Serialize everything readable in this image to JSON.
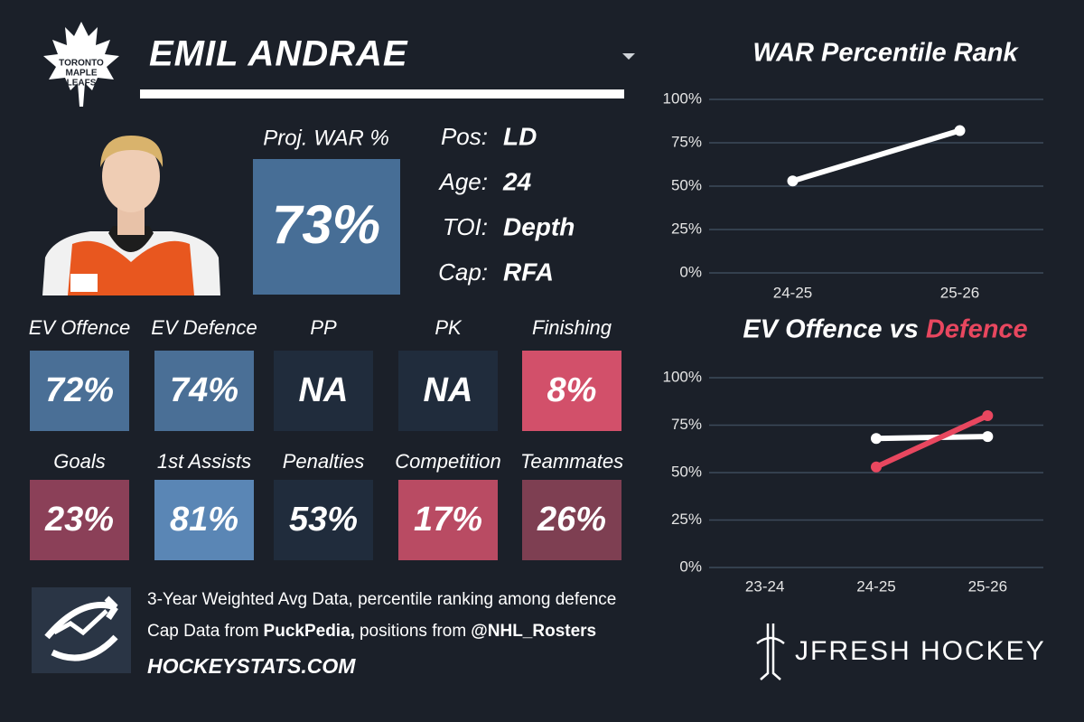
{
  "header": {
    "player_name": "EMIL ANDRAE",
    "logo_text": [
      "TORONTO",
      "MAPLE",
      "LEAFS"
    ]
  },
  "proj_war": {
    "label": "Proj. WAR %",
    "value": "73%",
    "color": "#476e96"
  },
  "bio": [
    {
      "label": "Pos:",
      "value": "LD"
    },
    {
      "label": "Age:",
      "value": "24"
    },
    {
      "label": "TOI:",
      "value": "Depth"
    },
    {
      "label": "Cap:",
      "value": "RFA"
    }
  ],
  "tiles": [
    {
      "label": "EV Offence",
      "value": "72%",
      "color": "#4a6f96"
    },
    {
      "label": "EV Defence",
      "value": "74%",
      "color": "#4a6f96"
    },
    {
      "label": "PP",
      "value": "NA",
      "color": "#202c3c"
    },
    {
      "label": "PK",
      "value": "NA",
      "color": "#202c3c"
    },
    {
      "label": "Finishing",
      "value": "8%",
      "color": "#d2506a"
    },
    {
      "label": "Goals",
      "value": "23%",
      "color": "#8b4058"
    },
    {
      "label": "1st Assists",
      "value": "81%",
      "color": "#5a86b5"
    },
    {
      "label": "Penalties",
      "value": "53%",
      "color": "#202c3c"
    },
    {
      "label": "Competition",
      "value": "17%",
      "color": "#b94b63"
    },
    {
      "label": "Teammates",
      "value": "26%",
      "color": "#7e3f52"
    }
  ],
  "footer": {
    "line1": "3-Year Weighted Avg Data, percentile ranking among defence",
    "line2": [
      "Cap Data from",
      "PuckPedia,",
      "positions from",
      "@NHL_Rosters"
    ],
    "site": "HOCKEYSTATS.COM"
  },
  "brand": "JFRESH HOCKEY",
  "chart_data": [
    {
      "type": "line",
      "title": "WAR Percentile Rank",
      "categories": [
        "24-25",
        "25-26"
      ],
      "values": [
        53,
        82
      ],
      "color": "#ffffff",
      "ylim": [
        0,
        100
      ],
      "yticks": [
        {
          "value": 0,
          "label": "0%"
        },
        {
          "value": 25,
          "label": "25%"
        },
        {
          "value": 50,
          "label": "50%"
        },
        {
          "value": 75,
          "label": "75%"
        },
        {
          "value": 100,
          "label": "100%"
        }
      ],
      "grid": true
    },
    {
      "type": "line",
      "title": "EV Offence vs",
      "title_highlight": "Defence",
      "title_highlight_color": "#e8475f",
      "categories": [
        "23-24",
        "24-25",
        "25-26"
      ],
      "series": [
        {
          "color": "#ffffff",
          "values": [
            null,
            68,
            69
          ]
        },
        {
          "color": "#e8475f",
          "values": [
            null,
            53,
            80
          ]
        }
      ],
      "ylim": [
        0,
        100
      ],
      "yticks": [
        {
          "value": 0,
          "label": "0%"
        },
        {
          "value": 25,
          "label": "25%"
        },
        {
          "value": 50,
          "label": "50%"
        },
        {
          "value": 75,
          "label": "75%"
        },
        {
          "value": 100,
          "label": "100%"
        }
      ],
      "grid": true
    }
  ]
}
